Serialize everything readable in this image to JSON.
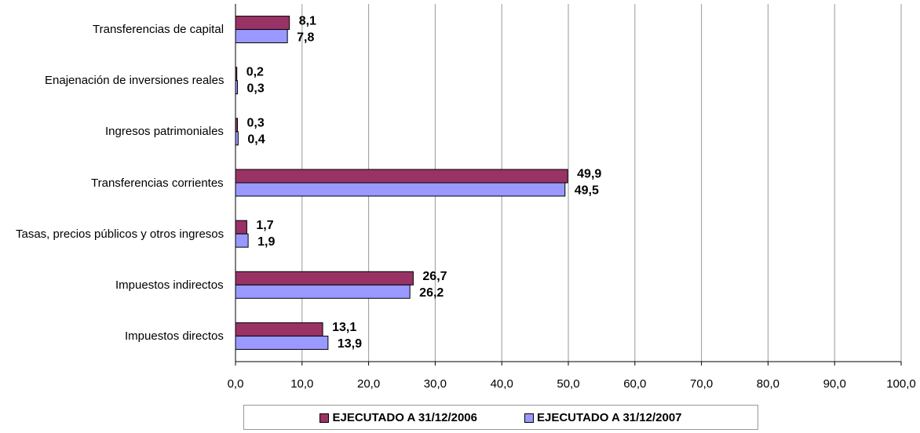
{
  "chart_data": {
    "type": "hbar",
    "categories": [
      "Transferencias de capital",
      "Enajenación de inversiones reales",
      "Ingresos patrimoniales",
      "Transferencias corrientes",
      "Tasas, precios públicos y otros ingresos",
      "Impuestos indirectos",
      "Impuestos directos"
    ],
    "series": [
      {
        "name": "EJECUTADO A 31/12/2006",
        "color": "#993366",
        "values": [
          8.1,
          0.2,
          0.3,
          49.9,
          1.7,
          26.7,
          13.1
        ],
        "value_labels": [
          "8,1",
          "0,2",
          "0,3",
          "49,9",
          "1,7",
          "26,7",
          "13,1"
        ]
      },
      {
        "name": "EJECUTADO A 31/12/2007",
        "color": "#9999ff",
        "values": [
          7.8,
          0.3,
          0.4,
          49.5,
          1.9,
          26.2,
          13.9
        ],
        "value_labels": [
          "7,8",
          "0,3",
          "0,4",
          "49,5",
          "1,9",
          "26,2",
          "13,9"
        ]
      }
    ],
    "xlim": [
      0,
      100
    ],
    "xticks": [
      {
        "value": 0,
        "label": "0,0"
      },
      {
        "value": 10,
        "label": "10,0"
      },
      {
        "value": 20,
        "label": "20,0"
      },
      {
        "value": 30,
        "label": "30,0"
      },
      {
        "value": 40,
        "label": "40,0"
      },
      {
        "value": 50,
        "label": "50,0"
      },
      {
        "value": 60,
        "label": "60,0"
      },
      {
        "value": 70,
        "label": "70,0"
      },
      {
        "value": 80,
        "label": "80,0"
      },
      {
        "value": 90,
        "label": "90,0"
      },
      {
        "value": 100,
        "label": "100,0"
      }
    ],
    "grid": true
  }
}
